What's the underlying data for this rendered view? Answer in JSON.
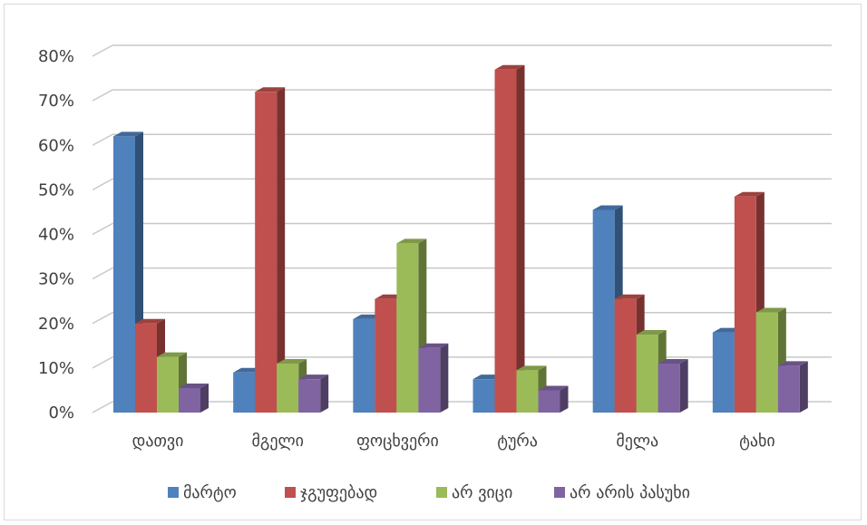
{
  "chart_data": {
    "type": "bar",
    "categories": [
      "დათვი",
      "მგელი",
      "ფოცხვერი",
      "ტურა",
      "მელა",
      "ტახი"
    ],
    "series": [
      {
        "name": "მარტო",
        "color": "#4f81bd",
        "values": [
          62,
          9,
          21,
          7.5,
          45.5,
          18
        ]
      },
      {
        "name": "ჯგუფებად",
        "color": "#c0504d",
        "values": [
          20,
          72,
          25.5,
          77,
          25.5,
          48.5
        ]
      },
      {
        "name": "არ ვიცი",
        "color": "#9bbb59",
        "values": [
          12.5,
          11,
          38,
          9.5,
          17.5,
          22.5
        ]
      },
      {
        "name": "არ არის პასუხი",
        "color": "#8064a2",
        "values": [
          5.5,
          7.5,
          14.5,
          5,
          11,
          10.5
        ]
      }
    ],
    "y_ticks": [
      "0%",
      "10%",
      "20%",
      "30%",
      "40%",
      "50%",
      "60%",
      "70%",
      "80%"
    ],
    "ylim": [
      0,
      80
    ],
    "grid": true,
    "legend_position": "bottom",
    "unit": "%"
  }
}
